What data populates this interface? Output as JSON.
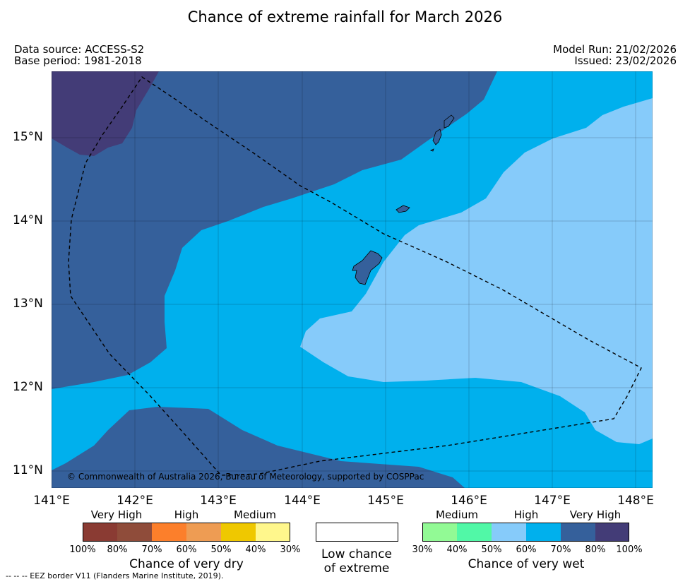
{
  "title": "Chance of extreme rainfall for March 2026",
  "meta": {
    "data_source": "Data source: ACCESS-S2",
    "base_period": "Base period: 1981-2018",
    "model_run": "Model Run: 21/02/2026",
    "issued": "Issued: 23/02/2026"
  },
  "map": {
    "copyright": "© Commonwealth of Australia 2026, Bureau of Meteorology, supported by COSPPac",
    "lat_labels": [
      "15°N",
      "14°N",
      "13°N",
      "12°N",
      "11°N"
    ],
    "lon_labels": [
      "141°E",
      "142°E",
      "143°E",
      "144°E",
      "145°E",
      "146°E",
      "147°E",
      "148°E"
    ],
    "lon_range": [
      141.0,
      148.2
    ],
    "lat_range": [
      10.8,
      15.8
    ],
    "colors": {
      "very_wet_80_100": "#433c77",
      "very_wet_70_80": "#35609b",
      "wet_60_70": "#00b0ed",
      "wet_50_60": "#86cbfa",
      "eez_border": "#000000"
    }
  },
  "legend": {
    "dry": {
      "headings": [
        "Very High",
        "High",
        "Medium"
      ],
      "colors": [
        "#8a3b33",
        "#8f4c3a",
        "#fc7f2b",
        "#ee9c53",
        "#efc800",
        "#fff78c"
      ],
      "ticks": [
        "100%",
        "80%",
        "70%",
        "60%",
        "50%",
        "40%",
        "30%"
      ],
      "caption": "Chance of very dry"
    },
    "low": {
      "line1": "Low chance",
      "line2": "of extreme",
      "color": "#ffffff"
    },
    "wet": {
      "headings": [
        "Medium",
        "High",
        "Very High"
      ],
      "colors": [
        "#92fa95",
        "#51f8a7",
        "#86cbfa",
        "#00b0ed",
        "#35609b",
        "#433c77"
      ],
      "ticks": [
        "30%",
        "40%",
        "50%",
        "60%",
        "70%",
        "80%",
        "100%"
      ],
      "caption": "Chance of very wet"
    }
  },
  "footnote": "-- -- -- EEZ border V11 (Flanders Marine Institute, 2019)."
}
